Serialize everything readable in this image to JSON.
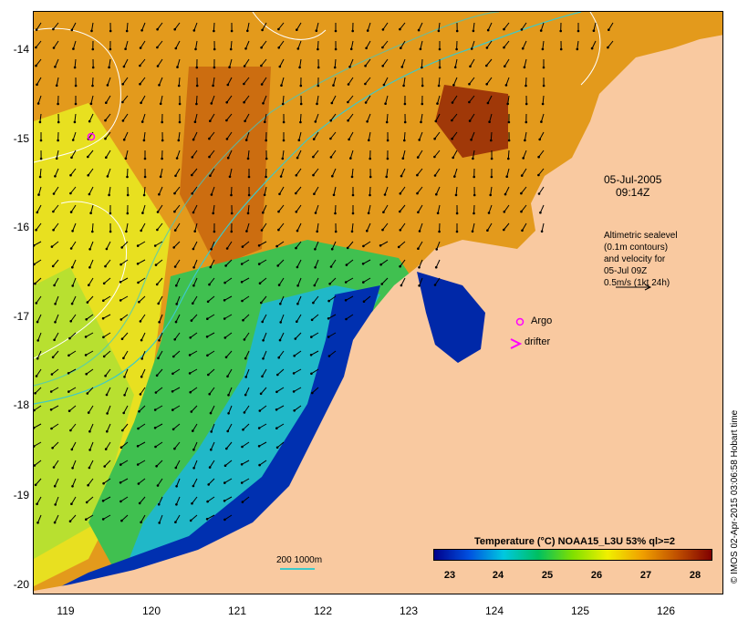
{
  "map": {
    "date": "05-Jul-2005",
    "time": "09:14Z",
    "altimetry_lines": [
      "Altimetric sealevel",
      "(0.1m contours)",
      "and velocity for",
      "05-Jul 09Z",
      "0.5m/s (1kt 24h)"
    ],
    "argo_label": "Argo",
    "drifter_label": "drifter",
    "scale_label": "200  1000m",
    "credit": "© IMOS 02-Apr-2015 03:06:58 Hobart time",
    "lat_labels": [
      "-14",
      "-15",
      "-16",
      "-17",
      "-18",
      "-19",
      "-20"
    ],
    "lon_labels": [
      "119",
      "120",
      "121",
      "122",
      "123",
      "124",
      "125",
      "126"
    ],
    "colors": {
      "land": "#f9c9a0",
      "contour_200_1000": "#3dc9c9",
      "argo_marker": "#ff00ff",
      "drifter_marker": "#ff00ff"
    }
  },
  "legend": {
    "title": "Temperature (°C) NOAA15_L3U 53% ql>=2",
    "ticks": [
      "23",
      "24",
      "25",
      "26",
      "27",
      "28"
    ],
    "colors": [
      "#00008b",
      "#0050e0",
      "#00c8e0",
      "#00c060",
      "#80e000",
      "#f0f000",
      "#f0a000",
      "#c05000",
      "#800000"
    ]
  }
}
